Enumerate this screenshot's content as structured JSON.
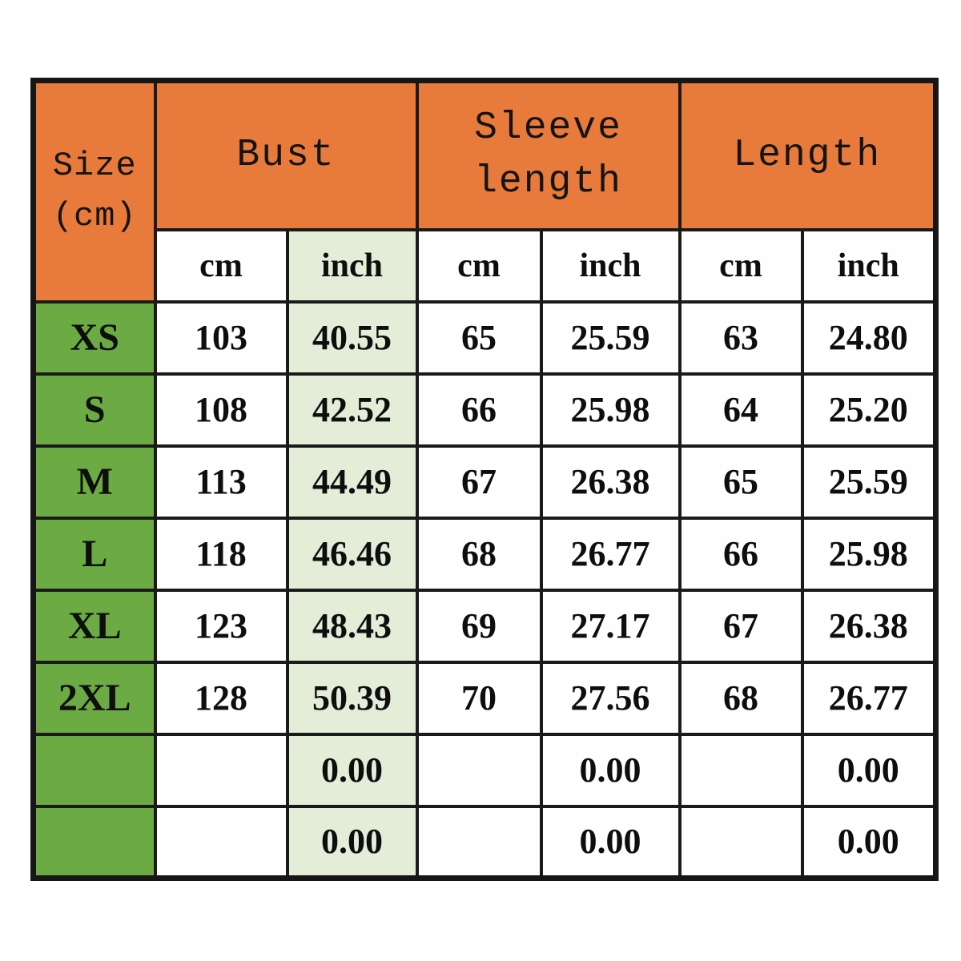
{
  "colors": {
    "header_orange": "#e87a3c",
    "size_column_green": "#6cab44",
    "bust_inch_light_green": "#e3edd8",
    "grid_line_black": "#1a1a1a",
    "text_black": "#0e0e0e",
    "cell_white": "#fefefe"
  },
  "header": {
    "corner_line1": "Size",
    "corner_line2": "(cm)",
    "groups": [
      "Bust",
      "Sleeve length",
      "Length"
    ],
    "units": [
      "cm",
      "inch",
      "cm",
      "inch",
      "cm",
      "inch"
    ]
  },
  "rows": [
    {
      "size": "XS",
      "cells": [
        "103",
        "40.55",
        "65",
        "25.59",
        "63",
        "24.80"
      ]
    },
    {
      "size": "S",
      "cells": [
        "108",
        "42.52",
        "66",
        "25.98",
        "64",
        "25.20"
      ]
    },
    {
      "size": "M",
      "cells": [
        "113",
        "44.49",
        "67",
        "26.38",
        "65",
        "25.59"
      ]
    },
    {
      "size": "L",
      "cells": [
        "118",
        "46.46",
        "68",
        "26.77",
        "66",
        "25.98"
      ]
    },
    {
      "size": "XL",
      "cells": [
        "123",
        "48.43",
        "69",
        "27.17",
        "67",
        "26.38"
      ]
    },
    {
      "size": "2XL",
      "cells": [
        "128",
        "50.39",
        "70",
        "27.56",
        "68",
        "26.77"
      ]
    },
    {
      "size": "",
      "cells": [
        "",
        "0.00",
        "",
        "0.00",
        "",
        "0.00"
      ]
    },
    {
      "size": "",
      "cells": [
        "",
        "0.00",
        "",
        "0.00",
        "",
        "0.00"
      ]
    }
  ],
  "chart_data": {
    "type": "table",
    "title": "Garment size chart",
    "columns": [
      "Size (cm)",
      "Bust cm",
      "Bust inch",
      "Sleeve length cm",
      "Sleeve length inch",
      "Length cm",
      "Length inch"
    ],
    "rows": [
      [
        "XS",
        103,
        40.55,
        65,
        25.59,
        63,
        24.8
      ],
      [
        "S",
        108,
        42.52,
        66,
        25.98,
        64,
        25.2
      ],
      [
        "M",
        113,
        44.49,
        67,
        26.38,
        65,
        25.59
      ],
      [
        "L",
        118,
        46.46,
        68,
        26.77,
        66,
        25.98
      ],
      [
        "XL",
        123,
        48.43,
        69,
        27.17,
        67,
        26.38
      ],
      [
        "2XL",
        128,
        50.39,
        70,
        27.56,
        68,
        26.77
      ],
      [
        "",
        null,
        0.0,
        null,
        0.0,
        null,
        0.0
      ],
      [
        "",
        null,
        0.0,
        null,
        0.0,
        null,
        0.0
      ]
    ]
  }
}
